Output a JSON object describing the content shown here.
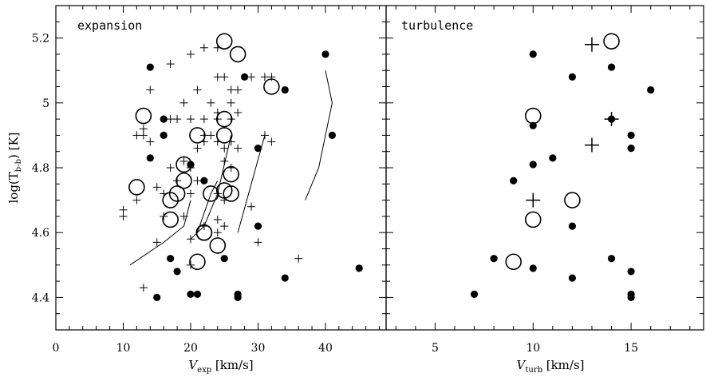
{
  "chart_data": [
    {
      "type": "scatter",
      "panel_label": "expansion",
      "xlabel": "V",
      "xlabel_sub": "exp",
      "xlabel_unit": " [km/s]",
      "ylabel": "log(T",
      "ylabel_sub": "b-b",
      "ylabel_unit": ") [K]",
      "xlim": [
        0,
        49
      ],
      "ylim": [
        4.3,
        5.3
      ],
      "xticks_major": [
        0,
        10,
        20,
        30,
        40
      ],
      "xtick_labels": [
        "0",
        "10",
        "20",
        "30",
        "40"
      ],
      "xticks_minor_step": 2,
      "yticks_major": [
        4.4,
        4.6,
        4.8,
        5.0,
        5.2
      ],
      "ytick_labels": [
        "4.4",
        "4.6",
        "4.8",
        "5",
        "5.2"
      ],
      "yticks_minor_step": 0.05,
      "series": [
        {
          "marker": "filled-circle",
          "points": [
            [
              14,
              5.11
            ],
            [
              16,
              4.95
            ],
            [
              16,
              4.9
            ],
            [
              14,
              4.83
            ],
            [
              15,
              4.4
            ],
            [
              17,
              4.52
            ],
            [
              18,
              4.48
            ],
            [
              20,
              4.81
            ],
            [
              20,
              4.41
            ],
            [
              21,
              4.41
            ],
            [
              22,
              4.76
            ],
            [
              25,
              4.52
            ],
            [
              27,
              4.41
            ],
            [
              27,
              4.4
            ],
            [
              28,
              5.08
            ],
            [
              30,
              4.86
            ],
            [
              30,
              4.62
            ],
            [
              34,
              5.04
            ],
            [
              34,
              4.46
            ],
            [
              40,
              5.15
            ],
            [
              41,
              4.9
            ],
            [
              45,
              4.49
            ]
          ]
        },
        {
          "marker": "open-circle",
          "points": [
            [
              13,
              4.96
            ],
            [
              12,
              4.74
            ],
            [
              19,
              4.81
            ],
            [
              19,
              4.76
            ],
            [
              18,
              4.72
            ],
            [
              17,
              4.7
            ],
            [
              17,
              4.64
            ],
            [
              21,
              4.9
            ],
            [
              21,
              4.51
            ],
            [
              22,
              4.6
            ],
            [
              22,
              4.6
            ],
            [
              23,
              4.72
            ],
            [
              24,
              4.56
            ],
            [
              25,
              4.95
            ],
            [
              25,
              4.9
            ],
            [
              25,
              4.73
            ],
            [
              25,
              5.19
            ],
            [
              26,
              4.78
            ],
            [
              26,
              4.72
            ],
            [
              27,
              5.15
            ],
            [
              32,
              5.05
            ]
          ]
        },
        {
          "marker": "plus",
          "points": [
            [
              17,
              5.12
            ],
            [
              20,
              5.15
            ],
            [
              22,
              5.17
            ],
            [
              24,
              5.17
            ],
            [
              14,
              5.04
            ],
            [
              21,
              5.04
            ],
            [
              24,
              5.08
            ],
            [
              25,
              5.08
            ],
            [
              26,
              5.04
            ],
            [
              27,
              5.04
            ],
            [
              29,
              5.08
            ],
            [
              31,
              5.08
            ],
            [
              32,
              5.08
            ],
            [
              19,
              5.0
            ],
            [
              23,
              5.0
            ],
            [
              26,
              5.0
            ],
            [
              24,
              4.97
            ],
            [
              27,
              4.97
            ],
            [
              17,
              4.95
            ],
            [
              18,
              4.95
            ],
            [
              20,
              4.95
            ],
            [
              22,
              4.95
            ],
            [
              24,
              4.95
            ],
            [
              26,
              4.95
            ],
            [
              12,
              4.9
            ],
            [
              13,
              4.92
            ],
            [
              13,
              4.9
            ],
            [
              14,
              4.88
            ],
            [
              22,
              4.9
            ],
            [
              23,
              4.9
            ],
            [
              21,
              4.86
            ],
            [
              22,
              4.88
            ],
            [
              24,
              4.88
            ],
            [
              26,
              4.88
            ],
            [
              31,
              4.9
            ],
            [
              32,
              4.88
            ],
            [
              25,
              4.86
            ],
            [
              27,
              4.86
            ],
            [
              19,
              4.82
            ],
            [
              17,
              4.8
            ],
            [
              20,
              4.8
            ],
            [
              25,
              4.82
            ],
            [
              26,
              4.8
            ],
            [
              21,
              4.76
            ],
            [
              18,
              4.76
            ],
            [
              15,
              4.74
            ],
            [
              16,
              4.72
            ],
            [
              20,
              4.72
            ],
            [
              24,
              4.72
            ],
            [
              25,
              4.7
            ],
            [
              12,
              4.7
            ],
            [
              10,
              4.67
            ],
            [
              10,
              4.65
            ],
            [
              16,
              4.65
            ],
            [
              19,
              4.65
            ],
            [
              24,
              4.64
            ],
            [
              29,
              4.68
            ],
            [
              22,
              4.62
            ],
            [
              25,
              4.62
            ],
            [
              20,
              4.58
            ],
            [
              24,
              4.6
            ],
            [
              15,
              4.57
            ],
            [
              30,
              4.57
            ],
            [
              20,
              4.5
            ],
            [
              13,
              4.43
            ],
            [
              36,
              4.52
            ]
          ]
        }
      ],
      "lines": [
        [
          [
            11,
            4.5
          ],
          [
            16,
            4.57
          ],
          [
            19,
            4.62
          ],
          [
            20,
            4.7
          ]
        ],
        [
          [
            20,
            4.58
          ],
          [
            22,
            4.62
          ],
          [
            24,
            4.72
          ],
          [
            26,
            4.9
          ]
        ],
        [
          [
            21,
            4.6
          ],
          [
            22,
            4.66
          ],
          [
            23,
            4.72
          ],
          [
            24,
            4.76
          ]
        ],
        [
          [
            27,
            4.6
          ],
          [
            29,
            4.75
          ],
          [
            31,
            4.9
          ]
        ],
        [
          [
            37,
            4.7
          ],
          [
            39,
            4.8
          ],
          [
            41,
            5.0
          ],
          [
            40,
            5.1
          ]
        ]
      ]
    },
    {
      "type": "scatter",
      "panel_label": "turbulence",
      "xlabel": "V",
      "xlabel_sub": "turb",
      "xlabel_unit": " [km/s]",
      "xlim": [
        2.5,
        18.7
      ],
      "ylim": [
        4.3,
        5.3
      ],
      "xticks_major": [
        5,
        10,
        15
      ],
      "xtick_labels": [
        "5",
        "10",
        "15"
      ],
      "xticks_minor_step": 1,
      "yticks_major": [
        4.4,
        4.6,
        4.8,
        5.0,
        5.2
      ],
      "yticks_minor_step": 0.05,
      "series": [
        {
          "marker": "filled-circle",
          "points": [
            [
              10,
              5.15
            ],
            [
              14,
              5.11
            ],
            [
              12,
              5.08
            ],
            [
              16,
              5.04
            ],
            [
              10,
              4.93
            ],
            [
              14,
              4.95
            ],
            [
              15,
              4.9
            ],
            [
              15,
              4.86
            ],
            [
              11,
              4.83
            ],
            [
              10,
              4.81
            ],
            [
              9,
              4.76
            ],
            [
              12,
              4.62
            ],
            [
              8,
              4.52
            ],
            [
              10,
              4.49
            ],
            [
              14,
              4.52
            ],
            [
              12,
              4.46
            ],
            [
              15,
              4.48
            ],
            [
              7,
              4.41
            ],
            [
              15,
              4.41
            ],
            [
              15,
              4.4
            ]
          ]
        },
        {
          "marker": "open-circle",
          "points": [
            [
              14,
              5.19
            ],
            [
              10,
              4.96
            ],
            [
              12,
              4.7
            ],
            [
              10,
              4.64
            ],
            [
              9,
              4.51
            ]
          ]
        },
        {
          "marker": "plus",
          "points": [
            [
              13,
              5.18
            ],
            [
              14,
              4.95
            ],
            [
              13,
              4.87
            ],
            [
              10,
              4.7
            ]
          ]
        }
      ]
    }
  ]
}
